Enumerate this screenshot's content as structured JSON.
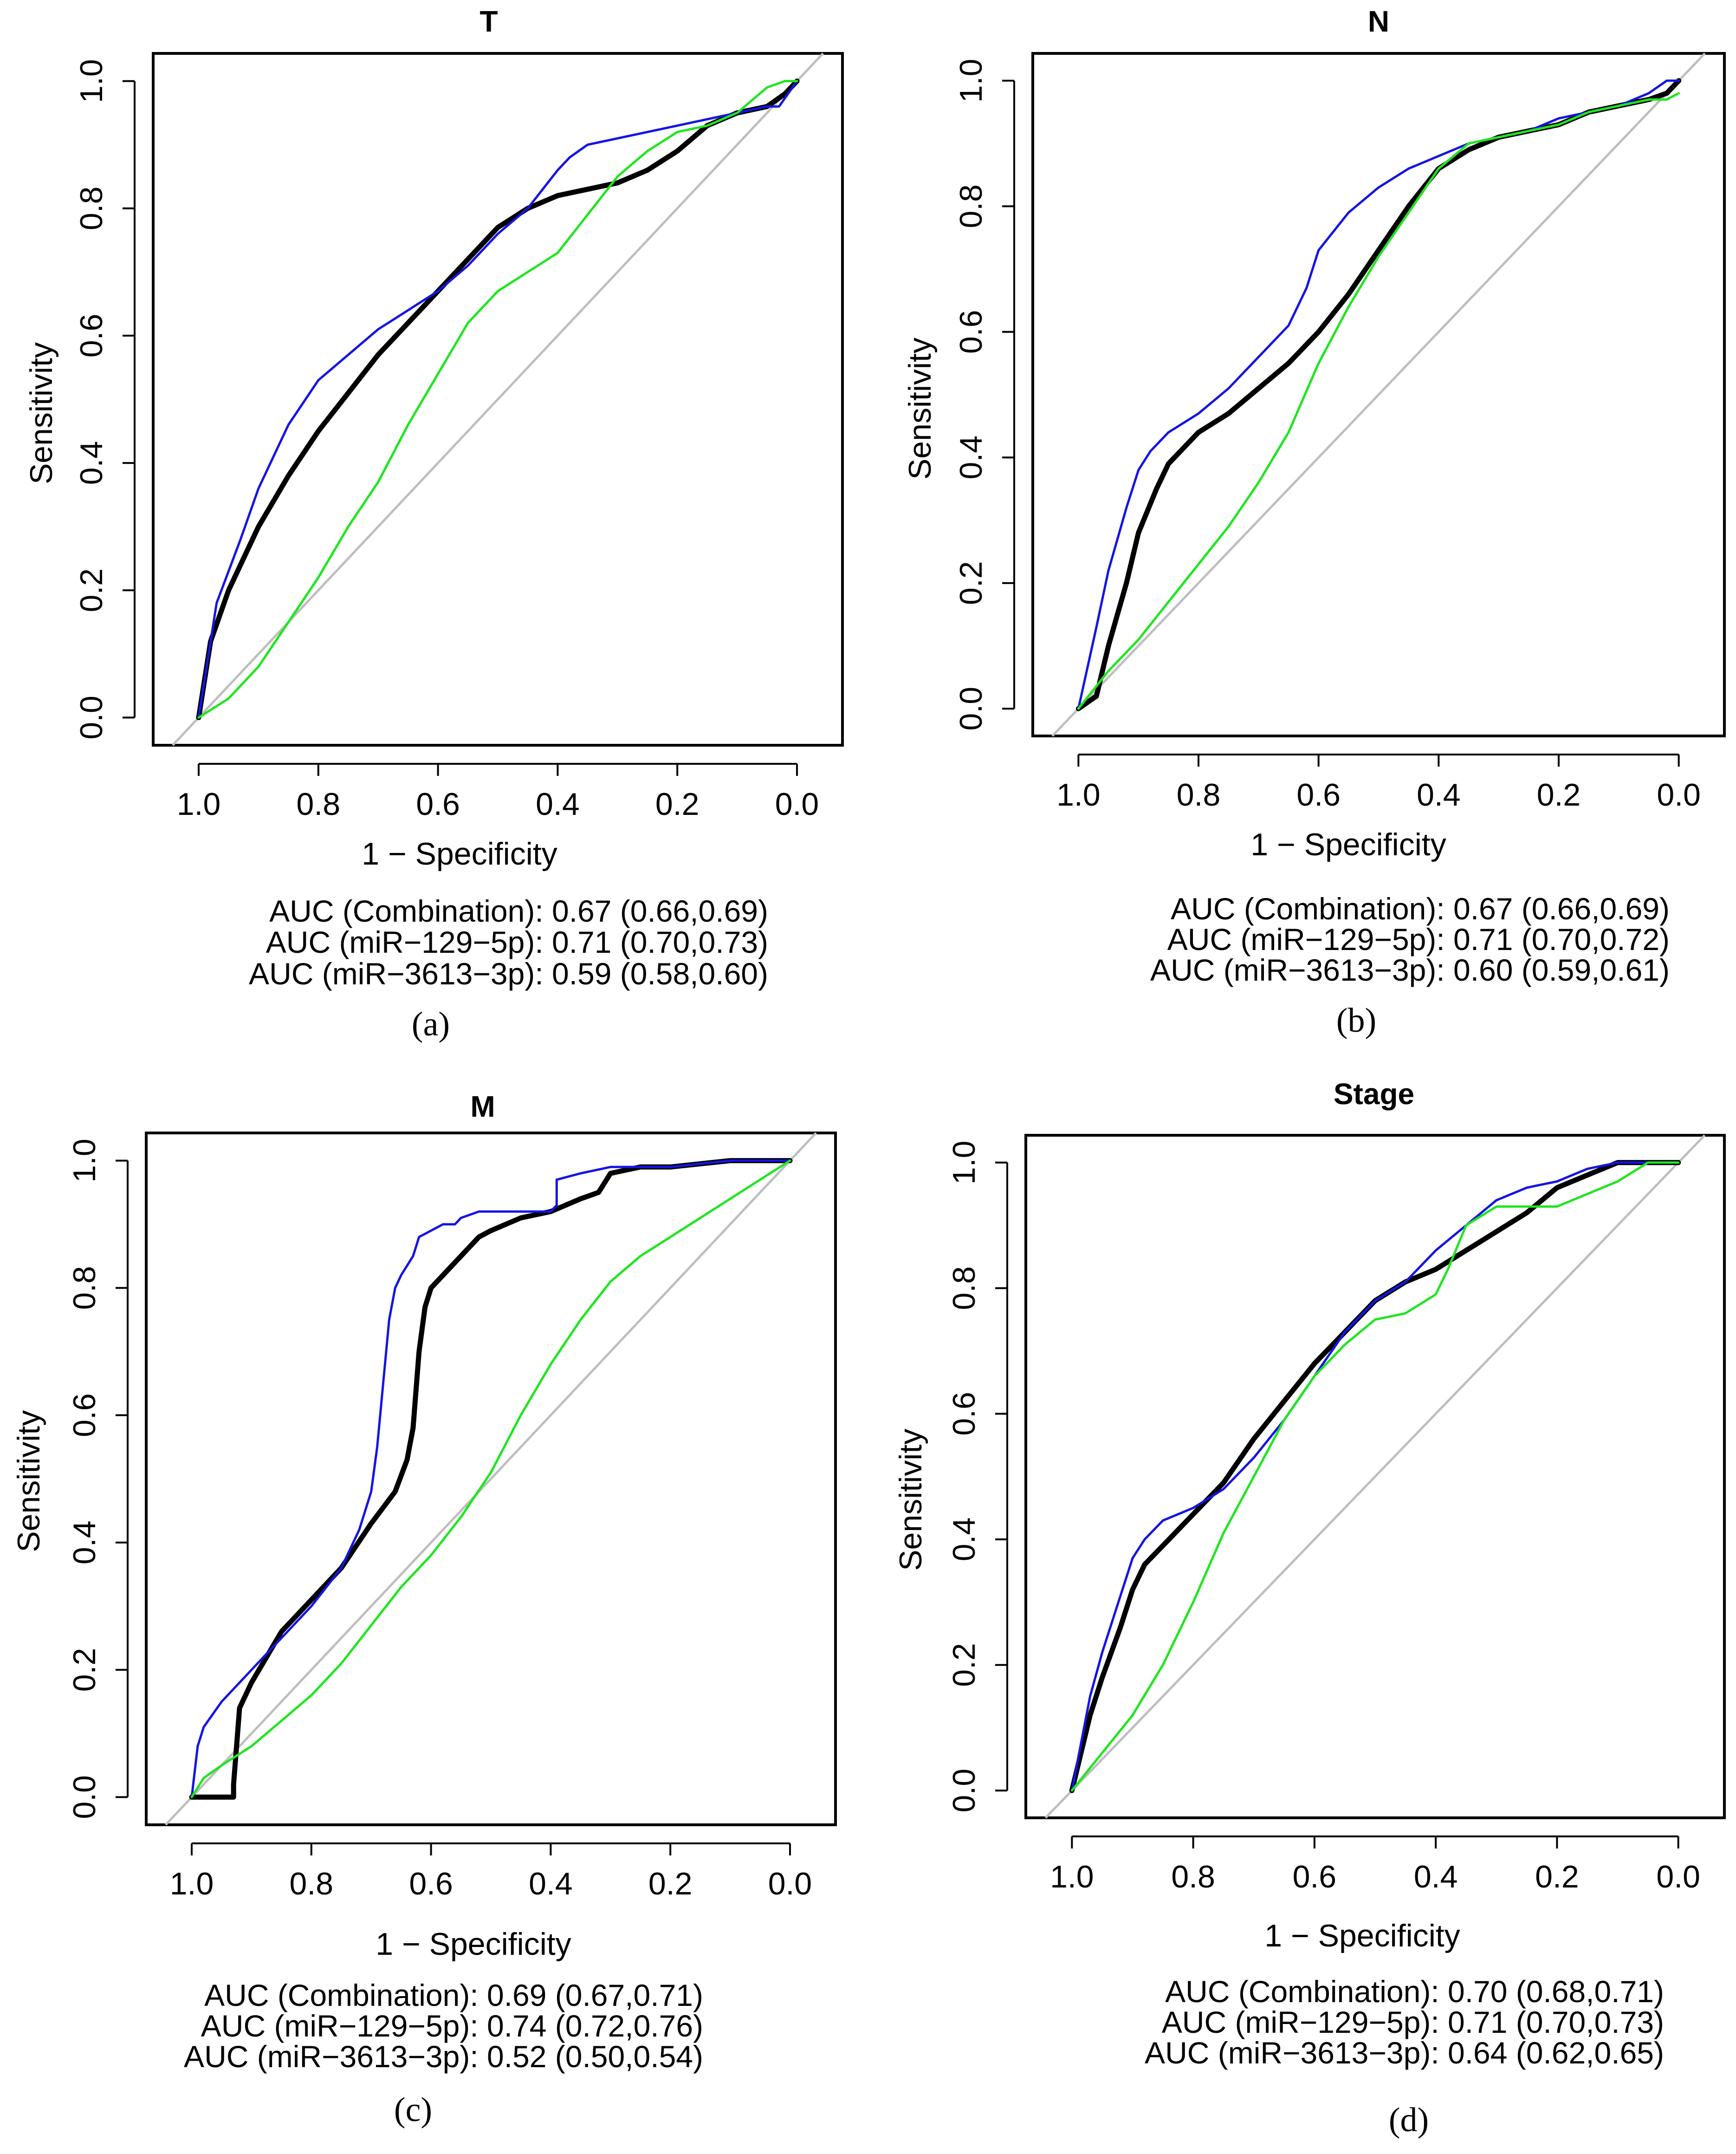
{
  "colors": {
    "combination": "#000000",
    "mir129": "#1414e6",
    "mir3613": "#1ee61e",
    "diagonal": "#bebebe"
  },
  "chart_data": [
    {
      "type": "line",
      "title": "T",
      "xlabel": "1 − Specificity",
      "ylabel": "Sensitivity",
      "xlim": [
        1.0,
        0.0
      ],
      "ylim": [
        0.0,
        1.0
      ],
      "xticks": [
        "1.0",
        "0.8",
        "0.6",
        "0.4",
        "0.2",
        "0.0"
      ],
      "yticks": [
        "0.0",
        "0.2",
        "0.4",
        "0.6",
        "0.8",
        "1.0"
      ],
      "series": [
        {
          "name": "Combination",
          "color": "#000000",
          "x": [
            1,
            0.98,
            0.95,
            0.9,
            0.85,
            0.8,
            0.75,
            0.7,
            0.65,
            0.6,
            0.55,
            0.5,
            0.45,
            0.4,
            0.35,
            0.3,
            0.25,
            0.2,
            0.15,
            0.1,
            0.05,
            0.02,
            0
          ],
          "y": [
            0,
            0.12,
            0.2,
            0.3,
            0.38,
            0.45,
            0.51,
            0.57,
            0.62,
            0.67,
            0.72,
            0.77,
            0.8,
            0.82,
            0.83,
            0.84,
            0.86,
            0.89,
            0.93,
            0.95,
            0.96,
            0.98,
            1
          ]
        },
        {
          "name": "miR-129-5p",
          "color": "#1414e6",
          "x": [
            1,
            0.97,
            0.93,
            0.9,
            0.85,
            0.8,
            0.75,
            0.7,
            0.65,
            0.6,
            0.55,
            0.5,
            0.45,
            0.4,
            0.38,
            0.35,
            0.3,
            0.25,
            0.2,
            0.15,
            0.1,
            0.05,
            0.03,
            0
          ],
          "y": [
            0,
            0.18,
            0.28,
            0.36,
            0.46,
            0.53,
            0.57,
            0.61,
            0.64,
            0.67,
            0.71,
            0.76,
            0.8,
            0.86,
            0.88,
            0.9,
            0.91,
            0.92,
            0.93,
            0.94,
            0.95,
            0.96,
            0.96,
            1
          ]
        },
        {
          "name": "miR-3613-3p",
          "color": "#1ee61e",
          "x": [
            1,
            0.95,
            0.9,
            0.85,
            0.8,
            0.75,
            0.7,
            0.65,
            0.6,
            0.55,
            0.5,
            0.45,
            0.4,
            0.35,
            0.3,
            0.25,
            0.2,
            0.15,
            0.1,
            0.05,
            0.02,
            0
          ],
          "y": [
            0,
            0.03,
            0.08,
            0.15,
            0.22,
            0.3,
            0.37,
            0.46,
            0.54,
            0.62,
            0.67,
            0.7,
            0.73,
            0.79,
            0.85,
            0.89,
            0.92,
            0.93,
            0.95,
            0.99,
            1,
            1
          ]
        }
      ],
      "auc": [
        {
          "label": "AUC (Combination): 0.67 (0.66,0.69)"
        },
        {
          "label": "AUC (miR−129−5p): 0.71 (0.70,0.73)"
        },
        {
          "label": "AUC (miR−3613−3p): 0.59 (0.58,0.60)"
        }
      ],
      "caption": "(a)"
    },
    {
      "type": "line",
      "title": "N",
      "xlabel": "1 − Specificity",
      "ylabel": "Sensitivity",
      "xlim": [
        1.0,
        0.0
      ],
      "ylim": [
        0.0,
        1.0
      ],
      "xticks": [
        "1.0",
        "0.8",
        "0.6",
        "0.4",
        "0.2",
        "0.0"
      ],
      "yticks": [
        "0.0",
        "0.2",
        "0.4",
        "0.6",
        "0.8",
        "1.0"
      ],
      "series": [
        {
          "name": "Combination",
          "color": "#000000",
          "x": [
            1,
            0.97,
            0.95,
            0.92,
            0.9,
            0.87,
            0.85,
            0.8,
            0.75,
            0.7,
            0.65,
            0.6,
            0.55,
            0.5,
            0.45,
            0.4,
            0.35,
            0.3,
            0.25,
            0.2,
            0.15,
            0.1,
            0.05,
            0.02,
            0
          ],
          "y": [
            0,
            0.02,
            0.1,
            0.2,
            0.28,
            0.35,
            0.39,
            0.44,
            0.47,
            0.51,
            0.55,
            0.6,
            0.66,
            0.73,
            0.8,
            0.86,
            0.89,
            0.91,
            0.92,
            0.93,
            0.95,
            0.96,
            0.97,
            0.98,
            1
          ]
        },
        {
          "name": "miR-129-5p",
          "color": "#1414e6",
          "x": [
            1,
            0.97,
            0.95,
            0.92,
            0.9,
            0.88,
            0.85,
            0.8,
            0.75,
            0.7,
            0.65,
            0.62,
            0.6,
            0.55,
            0.5,
            0.45,
            0.4,
            0.35,
            0.3,
            0.25,
            0.2,
            0.15,
            0.1,
            0.05,
            0.02,
            0
          ],
          "y": [
            0,
            0.13,
            0.22,
            0.32,
            0.38,
            0.41,
            0.44,
            0.47,
            0.51,
            0.56,
            0.61,
            0.67,
            0.73,
            0.79,
            0.83,
            0.86,
            0.88,
            0.9,
            0.91,
            0.92,
            0.94,
            0.95,
            0.96,
            0.98,
            1,
            1
          ]
        },
        {
          "name": "miR-3613-3p",
          "color": "#1ee61e",
          "x": [
            1,
            0.95,
            0.9,
            0.85,
            0.8,
            0.75,
            0.7,
            0.65,
            0.6,
            0.55,
            0.5,
            0.45,
            0.4,
            0.35,
            0.3,
            0.25,
            0.2,
            0.15,
            0.1,
            0.05,
            0.02,
            0
          ],
          "y": [
            0,
            0.06,
            0.11,
            0.17,
            0.23,
            0.29,
            0.36,
            0.44,
            0.55,
            0.64,
            0.72,
            0.79,
            0.86,
            0.9,
            0.91,
            0.92,
            0.93,
            0.95,
            0.96,
            0.97,
            0.97,
            0.98
          ]
        }
      ],
      "auc": [
        {
          "label": "AUC (Combination): 0.67 (0.66,0.69)"
        },
        {
          "label": "AUC (miR−129−5p): 0.71 (0.70,0.72)"
        },
        {
          "label": "AUC (miR−3613−3p): 0.60 (0.59,0.61)"
        }
      ],
      "caption": "(b)"
    },
    {
      "type": "line",
      "title": "M",
      "xlabel": "1 − Specificity",
      "ylabel": "Sensitivity",
      "xlim": [
        1.0,
        0.0
      ],
      "ylim": [
        0.0,
        1.0
      ],
      "xticks": [
        "1.0",
        "0.8",
        "0.6",
        "0.4",
        "0.2",
        "0.0"
      ],
      "yticks": [
        "0.0",
        "0.2",
        "0.4",
        "0.6",
        "0.8",
        "1.0"
      ],
      "series": [
        {
          "name": "Combination",
          "color": "#000000",
          "x": [
            1,
            0.93,
            0.93,
            0.92,
            0.9,
            0.85,
            0.8,
            0.75,
            0.7,
            0.66,
            0.64,
            0.63,
            0.62,
            0.61,
            0.6,
            0.58,
            0.55,
            0.52,
            0.5,
            0.45,
            0.4,
            0.35,
            0.32,
            0.3,
            0.25,
            0.2,
            0.1,
            0
          ],
          "y": [
            0,
            0,
            0.02,
            0.14,
            0.18,
            0.26,
            0.31,
            0.36,
            0.43,
            0.48,
            0.53,
            0.58,
            0.7,
            0.77,
            0.8,
            0.82,
            0.85,
            0.88,
            0.89,
            0.91,
            0.92,
            0.94,
            0.95,
            0.98,
            0.99,
            0.99,
            1,
            1
          ]
        },
        {
          "name": "miR-129-5p",
          "color": "#1414e6",
          "x": [
            1,
            0.99,
            0.98,
            0.95,
            0.9,
            0.85,
            0.8,
            0.75,
            0.72,
            0.7,
            0.69,
            0.68,
            0.67,
            0.66,
            0.65,
            0.63,
            0.62,
            0.6,
            0.58,
            0.56,
            0.55,
            0.52,
            0.45,
            0.4,
            0.39,
            0.39,
            0.35,
            0.3,
            0.2,
            0.1,
            0
          ],
          "y": [
            0,
            0.08,
            0.11,
            0.15,
            0.2,
            0.25,
            0.3,
            0.36,
            0.42,
            0.48,
            0.55,
            0.65,
            0.75,
            0.8,
            0.82,
            0.85,
            0.88,
            0.89,
            0.9,
            0.9,
            0.91,
            0.92,
            0.92,
            0.92,
            0.93,
            0.97,
            0.98,
            0.99,
            0.99,
            1,
            1
          ]
        },
        {
          "name": "miR-3613-3p",
          "color": "#1ee61e",
          "x": [
            1,
            0.98,
            0.95,
            0.9,
            0.85,
            0.8,
            0.75,
            0.7,
            0.65,
            0.6,
            0.55,
            0.5,
            0.45,
            0.4,
            0.35,
            0.3,
            0.25,
            0.2,
            0.15,
            0.1,
            0.05,
            0
          ],
          "y": [
            0,
            0.03,
            0.05,
            0.08,
            0.12,
            0.16,
            0.21,
            0.27,
            0.33,
            0.38,
            0.44,
            0.51,
            0.6,
            0.68,
            0.75,
            0.81,
            0.85,
            0.88,
            0.91,
            0.94,
            0.97,
            1
          ]
        }
      ],
      "auc": [
        {
          "label": "AUC (Combination): 0.69 (0.67,0.71)"
        },
        {
          "label": "AUC (miR−129−5p): 0.74 (0.72,0.76)"
        },
        {
          "label": "AUC (miR−3613−3p): 0.52 (0.50,0.54)"
        }
      ],
      "caption": "(c)"
    },
    {
      "type": "line",
      "title": "Stage",
      "xlabel": "1 − Specificity",
      "ylabel": "Sensitivity",
      "xlim": [
        1.0,
        0.0
      ],
      "ylim": [
        0.0,
        1.0
      ],
      "xticks": [
        "1.0",
        "0.8",
        "0.6",
        "0.4",
        "0.2",
        "0.0"
      ],
      "yticks": [
        "0.0",
        "0.2",
        "0.4",
        "0.6",
        "0.8",
        "1.0"
      ],
      "series": [
        {
          "name": "Combination",
          "color": "#000000",
          "x": [
            1,
            0.97,
            0.95,
            0.92,
            0.9,
            0.88,
            0.85,
            0.8,
            0.75,
            0.7,
            0.65,
            0.6,
            0.55,
            0.5,
            0.45,
            0.4,
            0.35,
            0.3,
            0.25,
            0.2,
            0.15,
            0.1,
            0.05,
            0
          ],
          "y": [
            0,
            0.12,
            0.18,
            0.26,
            0.32,
            0.36,
            0.39,
            0.44,
            0.49,
            0.56,
            0.62,
            0.68,
            0.73,
            0.78,
            0.81,
            0.83,
            0.86,
            0.89,
            0.92,
            0.96,
            0.98,
            1,
            1,
            1
          ]
        },
        {
          "name": "miR-129-5p",
          "color": "#1414e6",
          "x": [
            1,
            0.97,
            0.95,
            0.92,
            0.9,
            0.88,
            0.85,
            0.8,
            0.75,
            0.7,
            0.65,
            0.6,
            0.55,
            0.5,
            0.45,
            0.4,
            0.35,
            0.3,
            0.25,
            0.2,
            0.15,
            0.1,
            0.05,
            0
          ],
          "y": [
            0,
            0.15,
            0.22,
            0.31,
            0.37,
            0.4,
            0.43,
            0.45,
            0.48,
            0.53,
            0.59,
            0.66,
            0.73,
            0.78,
            0.81,
            0.86,
            0.9,
            0.94,
            0.96,
            0.97,
            0.99,
            1,
            1,
            1
          ]
        },
        {
          "name": "miR-3613-3p",
          "color": "#1ee61e",
          "x": [
            1,
            0.95,
            0.9,
            0.85,
            0.8,
            0.75,
            0.7,
            0.65,
            0.6,
            0.55,
            0.5,
            0.45,
            0.4,
            0.38,
            0.35,
            0.3,
            0.25,
            0.2,
            0.15,
            0.1,
            0.05,
            0
          ],
          "y": [
            0,
            0.06,
            0.12,
            0.2,
            0.3,
            0.41,
            0.5,
            0.59,
            0.66,
            0.71,
            0.75,
            0.76,
            0.79,
            0.83,
            0.9,
            0.93,
            0.93,
            0.93,
            0.95,
            0.97,
            1,
            1
          ]
        }
      ],
      "auc": [
        {
          "label": "AUC (Combination): 0.70 (0.68,0.71)"
        },
        {
          "label": "AUC (miR−129−5p): 0.71 (0.70,0.73)"
        },
        {
          "label": "AUC (miR−3613−3p): 0.64 (0.62,0.65)"
        }
      ],
      "caption": "(d)"
    }
  ]
}
